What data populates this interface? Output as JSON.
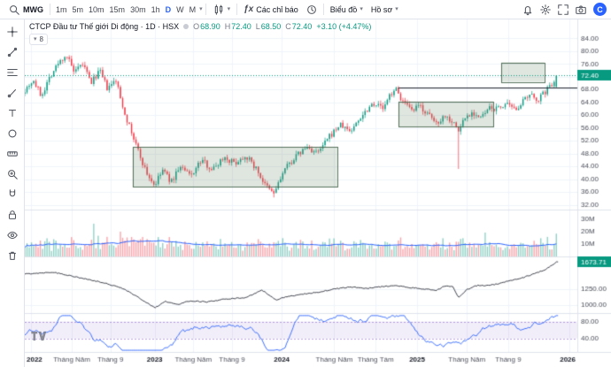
{
  "icons": {
    "caret_down": "▾",
    "fx": "ƒx"
  },
  "topbar": {
    "symbol": "MWG",
    "intervals": [
      "1m",
      "5m",
      "10m",
      "15m",
      "30m",
      "1h",
      "D",
      "W",
      "M"
    ],
    "selected_interval": "D",
    "indicators_label": "Các chỉ báo",
    "chart_label": "Biểu đồ",
    "profile_label": "Hồ sơ",
    "account_initial": "C",
    "right_icons": [
      "alert-bell",
      "settings-gear",
      "fullscreen",
      "camera"
    ]
  },
  "left_toolbar": {
    "tools": [
      "crosshair",
      "trend-line",
      "fib-retracement",
      "brush",
      "text",
      "shapes",
      "measure",
      "zoom-in",
      "magnet",
      "lock",
      "eye",
      "trash"
    ]
  },
  "legend": {
    "title": "CTCP Đầu tư Thế giới Di động · 1D · HSX",
    "o_label": "O",
    "o": "68.90",
    "h_label": "H",
    "h": "72.40",
    "l_label": "L",
    "l": "68.50",
    "c_label": "C",
    "c": "72.40",
    "change": "+3.10 (+4.47%)",
    "collapsed_count": "8"
  },
  "chart_data": {
    "type": "candlestick",
    "symbol": "MWG",
    "timeframe": "1D",
    "exchange": "HSX",
    "last": {
      "o": 68.9,
      "h": 72.4,
      "l": 68.5,
      "c": 72.4
    },
    "price_keyframes": [
      [
        0,
        68
      ],
      [
        0.015,
        71
      ],
      [
        0.03,
        66
      ],
      [
        0.045,
        72
      ],
      [
        0.06,
        76
      ],
      [
        0.075,
        79
      ],
      [
        0.09,
        73
      ],
      [
        0.105,
        76
      ],
      [
        0.12,
        70
      ],
      [
        0.135,
        74
      ],
      [
        0.15,
        68
      ],
      [
        0.165,
        71
      ],
      [
        0.175,
        64
      ],
      [
        0.19,
        56
      ],
      [
        0.205,
        49
      ],
      [
        0.22,
        42
      ],
      [
        0.235,
        38
      ],
      [
        0.25,
        43
      ],
      [
        0.265,
        39
      ],
      [
        0.28,
        44
      ],
      [
        0.3,
        41
      ],
      [
        0.32,
        46
      ],
      [
        0.34,
        43
      ],
      [
        0.36,
        47
      ],
      [
        0.38,
        45
      ],
      [
        0.4,
        47.5
      ],
      [
        0.42,
        43
      ],
      [
        0.435,
        38
      ],
      [
        0.45,
        35.5
      ],
      [
        0.46,
        39
      ],
      [
        0.47,
        43
      ],
      [
        0.49,
        47
      ],
      [
        0.51,
        50
      ],
      [
        0.53,
        48
      ],
      [
        0.55,
        53
      ],
      [
        0.57,
        57
      ],
      [
        0.59,
        55
      ],
      [
        0.61,
        60
      ],
      [
        0.63,
        64
      ],
      [
        0.65,
        62
      ],
      [
        0.66,
        66
      ],
      [
        0.67,
        68.5
      ],
      [
        0.685,
        64
      ],
      [
        0.7,
        61
      ],
      [
        0.715,
        63
      ],
      [
        0.73,
        60
      ],
      [
        0.745,
        57.5
      ],
      [
        0.76,
        60
      ],
      [
        0.775,
        58
      ],
      [
        0.785,
        55
      ],
      [
        0.795,
        59
      ],
      [
        0.81,
        61
      ],
      [
        0.825,
        59
      ],
      [
        0.84,
        62
      ],
      [
        0.855,
        62
      ],
      [
        0.87,
        63.5
      ],
      [
        0.885,
        61.5
      ],
      [
        0.9,
        64
      ],
      [
        0.915,
        66
      ],
      [
        0.93,
        65
      ],
      [
        0.945,
        68
      ],
      [
        0.955,
        70
      ],
      [
        0.962,
        72.4
      ]
    ],
    "wick_events": [
      {
        "t": 0.785,
        "low": 43.2
      },
      {
        "t": 0.452,
        "low": 34.3
      }
    ],
    "index_keyframes": [
      [
        0,
        1480
      ],
      [
        0.05,
        1510
      ],
      [
        0.08,
        1460
      ],
      [
        0.1,
        1420
      ],
      [
        0.14,
        1350
      ],
      [
        0.175,
        1270
      ],
      [
        0.2,
        1150
      ],
      [
        0.235,
        960
      ],
      [
        0.255,
        1060
      ],
      [
        0.275,
        1010
      ],
      [
        0.3,
        1070
      ],
      [
        0.33,
        1050
      ],
      [
        0.36,
        1090
      ],
      [
        0.4,
        1120
      ],
      [
        0.43,
        1230
      ],
      [
        0.455,
        1080
      ],
      [
        0.47,
        1120
      ],
      [
        0.5,
        1170
      ],
      [
        0.53,
        1200
      ],
      [
        0.56,
        1250
      ],
      [
        0.59,
        1280
      ],
      [
        0.62,
        1260
      ],
      [
        0.65,
        1290
      ],
      [
        0.67,
        1300
      ],
      [
        0.7,
        1270
      ],
      [
        0.72,
        1250
      ],
      [
        0.745,
        1230
      ],
      [
        0.76,
        1300
      ],
      [
        0.775,
        1280
      ],
      [
        0.785,
        1120
      ],
      [
        0.8,
        1240
      ],
      [
        0.82,
        1310
      ],
      [
        0.84,
        1300
      ],
      [
        0.86,
        1340
      ],
      [
        0.88,
        1380
      ],
      [
        0.9,
        1420
      ],
      [
        0.92,
        1480
      ],
      [
        0.94,
        1540
      ],
      [
        0.955,
        1620
      ],
      [
        0.962,
        1673.7
      ]
    ],
    "panes": {
      "price": {
        "labels": [
          84,
          80,
          76,
          68,
          64,
          60,
          56,
          52,
          48,
          44,
          40,
          36,
          32
        ],
        "grid": [
          84,
          80,
          76,
          72,
          68,
          64,
          60,
          56,
          52,
          48,
          44,
          40,
          36,
          32
        ],
        "badge": {
          "text": "72.40",
          "value": 72.4
        }
      },
      "volume": {
        "labels": [
          {
            "text": "30M",
            "value": 30
          },
          {
            "text": "20M",
            "value": 20
          },
          {
            "text": "10M",
            "value": 10
          }
        ]
      },
      "index": {
        "labels": [
          {
            "text": "1250.00",
            "value": 1250
          },
          {
            "text": "1000.00",
            "value": 1000
          }
        ],
        "badge": {
          "text": "1673.71",
          "value": 1673.71
        }
      },
      "oscillator": {
        "labels": [
          {
            "text": "80.00",
            "value": 80
          },
          {
            "text": "40.00",
            "value": 40
          }
        ],
        "band": [
          40,
          80
        ]
      }
    },
    "time_ticks": [
      {
        "t": 0.012,
        "label": "2022",
        "year": true
      },
      {
        "t": 0.085,
        "label": "Tháng Năm"
      },
      {
        "t": 0.155,
        "label": "Tháng 9"
      },
      {
        "t": 0.235,
        "label": "2023",
        "year": true
      },
      {
        "t": 0.305,
        "label": "Tháng Năm"
      },
      {
        "t": 0.375,
        "label": "Tháng 9"
      },
      {
        "t": 0.465,
        "label": "2024",
        "year": true
      },
      {
        "t": 0.56,
        "label": "Tháng Năm"
      },
      {
        "t": 0.635,
        "label": "Tháng Tám"
      },
      {
        "t": 0.71,
        "label": "2025",
        "year": true
      },
      {
        "t": 0.8,
        "label": "Tháng Năm"
      },
      {
        "t": 0.875,
        "label": "Tháng 9"
      },
      {
        "t": 0.985,
        "label": "2026",
        "year": true
      }
    ],
    "drawings": {
      "boxes": [
        {
          "x0": 0.195,
          "x1": 0.565,
          "p0": 37.5,
          "p1": 50.0
        },
        {
          "x0": 0.676,
          "x1": 0.848,
          "p0": 56.5,
          "p1": 64.3
        },
        {
          "x0": 0.862,
          "x1": 0.94,
          "p0": 70.5,
          "p1": 76.5
        }
      ],
      "hline": {
        "x0": 0.676,
        "x1": 1.0,
        "price": 68.5
      }
    },
    "colors": {
      "up": "#089981",
      "down": "#f23645",
      "grid": "#f0f3fa",
      "axis_text": "#4a4e59",
      "separator": "#e0e3eb",
      "volume_ma": "#2962ff",
      "index_line": "#2a2e39",
      "oscillator": "#2962ff",
      "band": "rgba(126,87,194,0.10)",
      "band_edge": "rgba(126,87,194,0.55)",
      "box_fill": "rgba(96,128,96,0.20)",
      "box_stroke": "rgba(70,100,75,0.9)",
      "hline": "#1e222d",
      "last_price_badge": "#089981"
    }
  }
}
